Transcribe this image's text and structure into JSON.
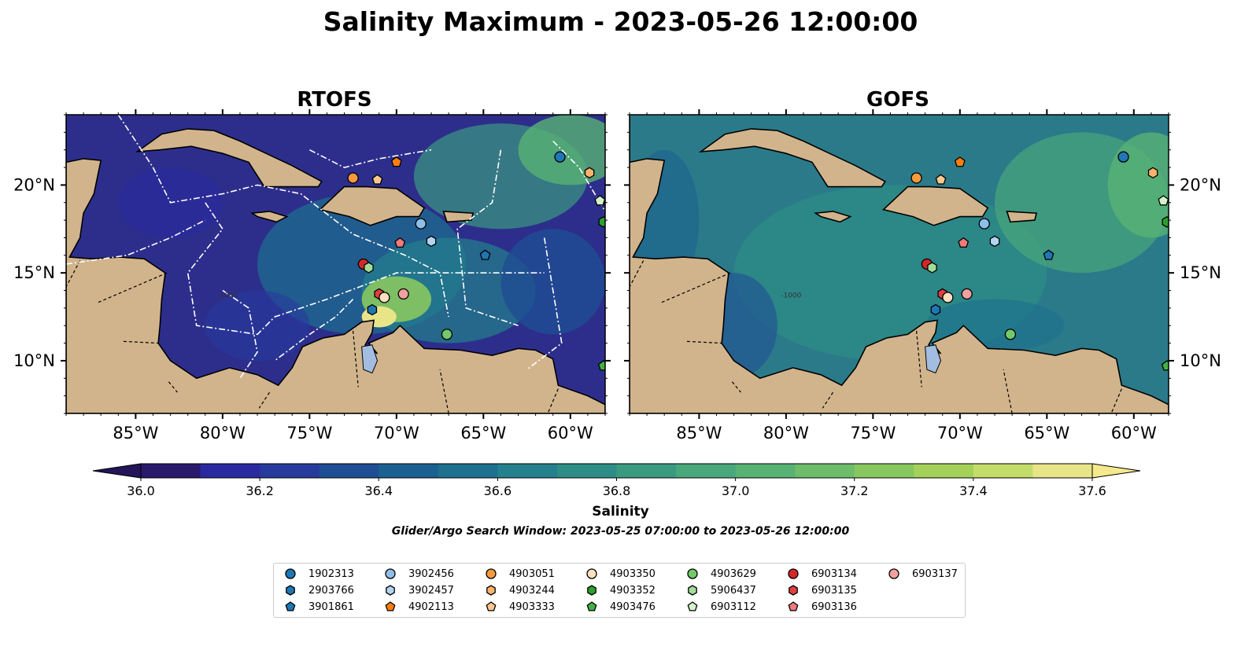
{
  "figure": {
    "title": "Salinity Maximum - 2023-05-26 12:00:00",
    "colorbar_label": "Salinity",
    "search_window": "Glider/Argo Search Window: 2023-05-25 07:00:00 to 2023-05-26 12:00:00"
  },
  "panels": [
    {
      "title": "RTOFS",
      "style": "rtofs"
    },
    {
      "title": "GOFS",
      "style": "gofs"
    }
  ],
  "map": {
    "lon_range": [
      -89,
      -58
    ],
    "lat_range": [
      7,
      24
    ],
    "lon_ticks": [
      {
        "value": -85,
        "label": "85°W"
      },
      {
        "value": -80,
        "label": "80°W"
      },
      {
        "value": -75,
        "label": "75°W"
      },
      {
        "value": -70,
        "label": "70°W"
      },
      {
        "value": -65,
        "label": "65°W"
      },
      {
        "value": -60,
        "label": "60°W"
      }
    ],
    "lat_ticks": [
      {
        "value": 20,
        "label": "20°N"
      },
      {
        "value": 15,
        "label": "15°N"
      },
      {
        "value": 10,
        "label": "10°N"
      }
    ],
    "contour_labels": [
      "-1000",
      "-1000"
    ],
    "colors": {
      "land": "#d2b48c",
      "lakes": "#a3bde0",
      "ocean_rtofs": "#2d2e8c",
      "ocean_gofs": "#2b7a8a"
    }
  },
  "colorbar": {
    "min": 36.0,
    "max": 37.6,
    "step": 0.1,
    "ticks": [
      "36.0",
      "36.2",
      "36.4",
      "36.6",
      "36.8",
      "37.0",
      "37.2",
      "37.4",
      "37.6"
    ],
    "colors": [
      "#2a1a6b",
      "#2a2aa0",
      "#263b9c",
      "#1f4e94",
      "#1a6090",
      "#1d708e",
      "#24808c",
      "#2d8d86",
      "#3a9a80",
      "#48a77b",
      "#58b274",
      "#6dbd6a",
      "#88c75f",
      "#a4d159",
      "#c4dc6a",
      "#e8e589"
    ]
  },
  "legend": {
    "items": [
      {
        "label": "1902313",
        "marker": "circle",
        "color": "#1f77b4"
      },
      {
        "label": "2903766",
        "marker": "hexagon",
        "color": "#1f77b4"
      },
      {
        "label": "3901861",
        "marker": "pentagon",
        "color": "#1f77b4"
      },
      {
        "label": "3902456",
        "marker": "circle",
        "color": "#8fbfe8"
      },
      {
        "label": "3902457",
        "marker": "hexagon",
        "color": "#b3d4f0"
      },
      {
        "label": "4902113",
        "marker": "pentagon",
        "color": "#ff7f0e"
      },
      {
        "label": "4903051",
        "marker": "circle",
        "color": "#f79a3e"
      },
      {
        "label": "4903244",
        "marker": "hexagon",
        "color": "#fdb36b"
      },
      {
        "label": "4903333",
        "marker": "pentagon",
        "color": "#fdc88f"
      },
      {
        "label": "4903350",
        "marker": "circle",
        "color": "#fde0c0"
      },
      {
        "label": "4903352",
        "marker": "hexagon",
        "color": "#2ca02c"
      },
      {
        "label": "4903476",
        "marker": "pentagon",
        "color": "#42b042"
      },
      {
        "label": "4903629",
        "marker": "circle",
        "color": "#72c96a"
      },
      {
        "label": "5906437",
        "marker": "hexagon",
        "color": "#a2dc98"
      },
      {
        "label": "6903112",
        "marker": "pentagon",
        "color": "#d4f2cc"
      },
      {
        "label": "6903134",
        "marker": "circle",
        "color": "#d62728"
      },
      {
        "label": "6903135",
        "marker": "hexagon",
        "color": "#e04040"
      },
      {
        "label": "6903136",
        "marker": "pentagon",
        "color": "#f07a7a"
      },
      {
        "label": "6903137",
        "marker": "circle",
        "color": "#f4a0a0"
      }
    ]
  },
  "float_positions": [
    {
      "id": "1902313",
      "lon": -60.6,
      "lat": 21.6
    },
    {
      "id": "4903244",
      "lon": -58.9,
      "lat": 20.7
    },
    {
      "id": "6903112",
      "lon": -58.3,
      "lat": 19.1
    },
    {
      "id": "4903352",
      "lon": -58.1,
      "lat": 17.9
    },
    {
      "id": "4903476",
      "lon": -58.1,
      "lat": 9.7
    },
    {
      "id": "4902113",
      "lon": -70.0,
      "lat": 21.3
    },
    {
      "id": "4903051",
      "lon": -72.5,
      "lat": 20.4
    },
    {
      "id": "4903333",
      "lon": -71.1,
      "lat": 20.3
    },
    {
      "id": "3902456",
      "lon": -68.6,
      "lat": 17.8
    },
    {
      "id": "3902457",
      "lon": -68.0,
      "lat": 16.8
    },
    {
      "id": "3901861",
      "lon": -64.9,
      "lat": 16.0
    },
    {
      "id": "6903136",
      "lon": -69.8,
      "lat": 16.7
    },
    {
      "id": "6903134",
      "lon": -71.9,
      "lat": 15.5
    },
    {
      "id": "5906437",
      "lon": -71.6,
      "lat": 15.3
    },
    {
      "id": "6903135",
      "lon": -71.0,
      "lat": 13.8
    },
    {
      "id": "4903350",
      "lon": -70.7,
      "lat": 13.6
    },
    {
      "id": "6903137",
      "lon": -69.6,
      "lat": 13.8
    },
    {
      "id": "2903766",
      "lon": -71.4,
      "lat": 12.9
    },
    {
      "id": "4903629",
      "lon": -67.1,
      "lat": 11.5
    }
  ]
}
